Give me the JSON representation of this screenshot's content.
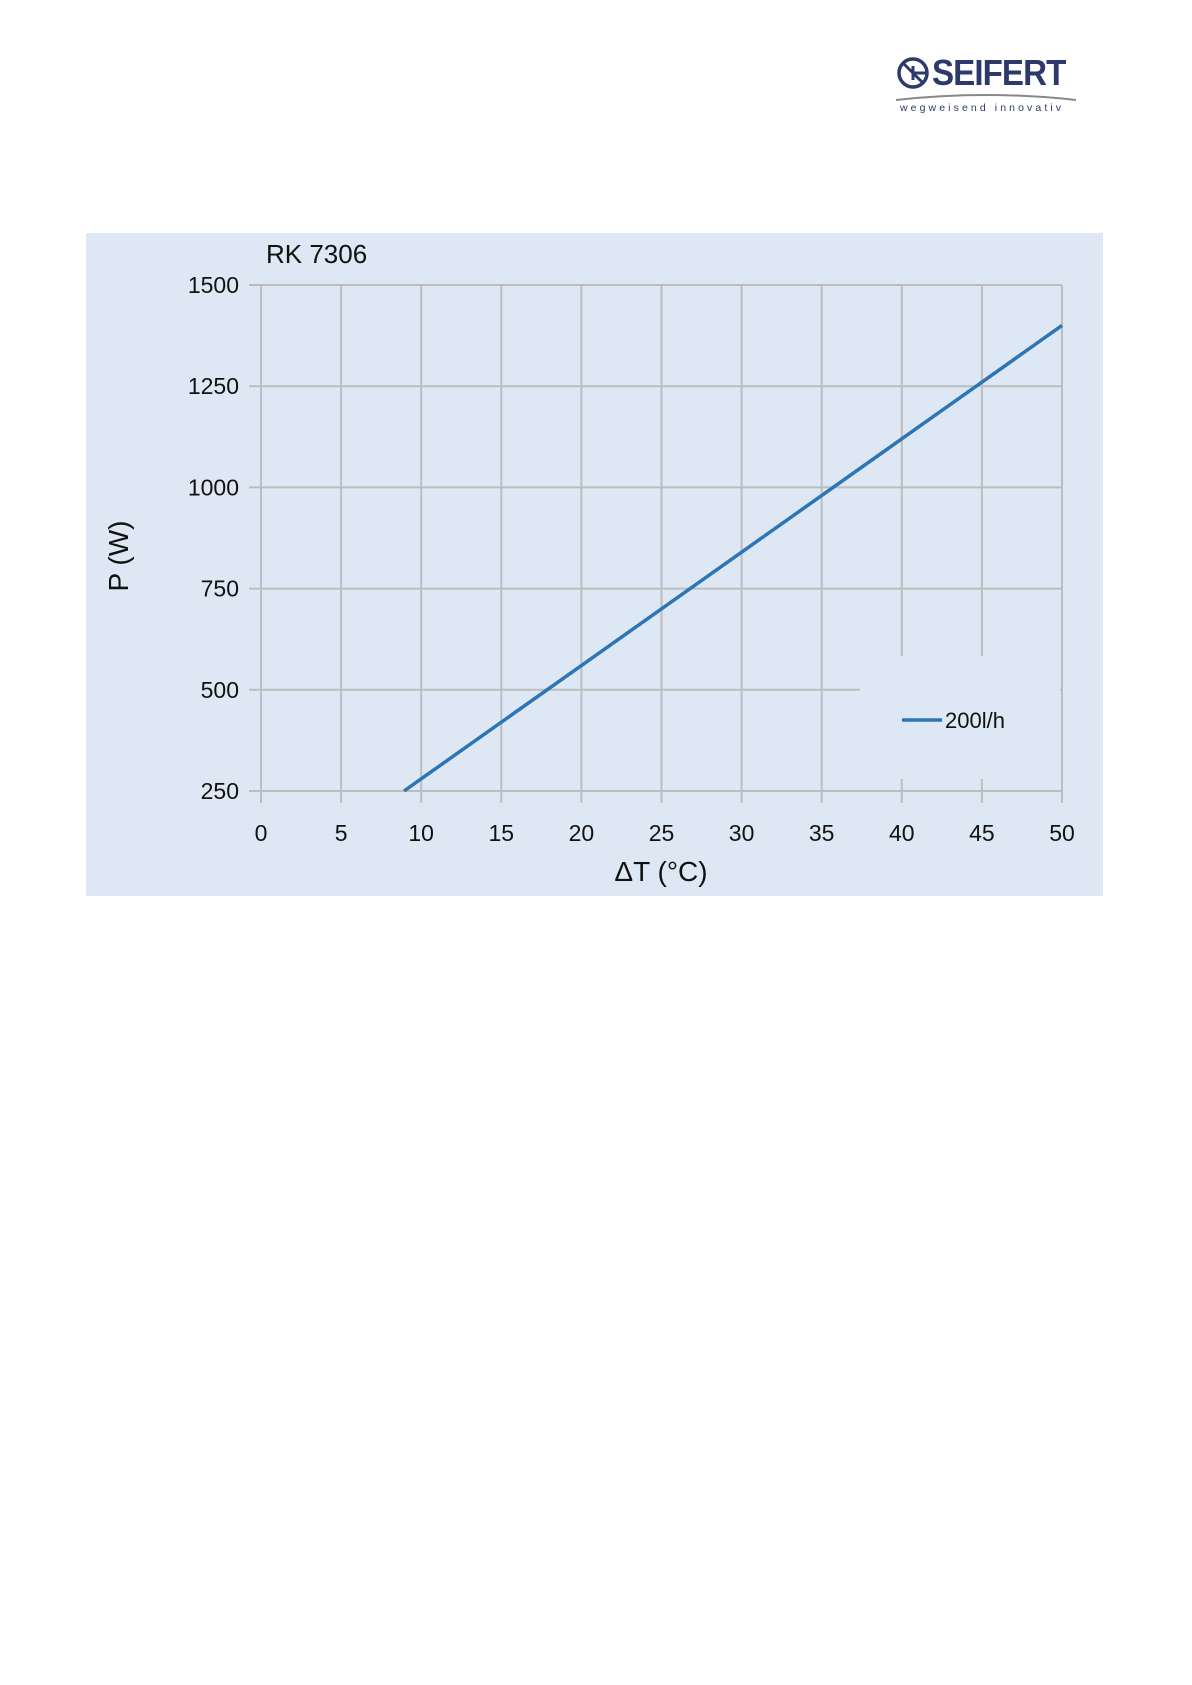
{
  "logo": {
    "brand": "SEIFERT",
    "tagline": "wegweisend innovativ",
    "color": "#2b3a6b"
  },
  "chart_data": {
    "type": "line",
    "title": "RK 7306",
    "xlabel": "ΔT (°C)",
    "ylabel": "P (W)",
    "xlim": [
      0,
      50
    ],
    "ylim": [
      250,
      1500
    ],
    "xticks": [
      0,
      5,
      10,
      15,
      20,
      25,
      30,
      35,
      40,
      45,
      50
    ],
    "yticks": [
      250,
      500,
      750,
      1000,
      1250,
      1500
    ],
    "grid": true,
    "legend": "right",
    "background": "#dde8f4",
    "series": [
      {
        "name": "200l/h",
        "color": "#2e75b6",
        "x": [
          8.93,
          10,
          20,
          30,
          40,
          50
        ],
        "y": [
          250,
          280,
          560,
          840,
          1120,
          1400
        ]
      }
    ]
  }
}
